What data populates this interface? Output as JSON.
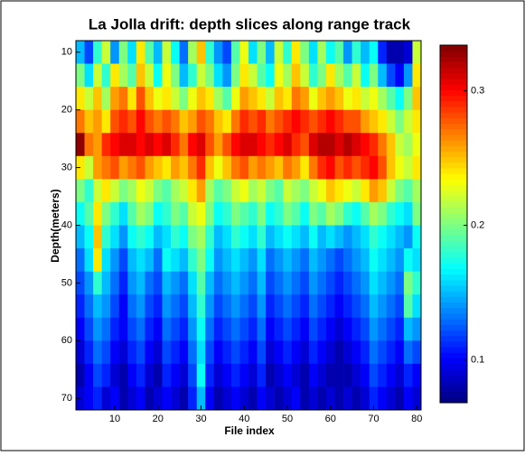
{
  "chart_data": {
    "type": "heatmap",
    "title": "La Jolla drift: depth slices along range track",
    "xlabel": "File index",
    "ylabel": "Depth(meters)",
    "colormap": "jet",
    "x": [
      2,
      4,
      6,
      8,
      10,
      12,
      14,
      16,
      18,
      20,
      22,
      24,
      26,
      28,
      30,
      32,
      34,
      36,
      38,
      40,
      42,
      44,
      46,
      48,
      50,
      52,
      54,
      56,
      58,
      60,
      62,
      64,
      66,
      68,
      70,
      72,
      74,
      76,
      78,
      80
    ],
    "y": [
      10,
      14,
      18,
      22,
      26,
      30,
      34,
      38,
      42,
      46,
      50,
      54,
      58,
      62,
      66,
      70
    ],
    "xlim": [
      1,
      81
    ],
    "ylim": [
      72,
      8
    ],
    "xticks": [
      10,
      20,
      30,
      40,
      50,
      60,
      70,
      80
    ],
    "yticks": [
      10,
      20,
      30,
      40,
      50,
      60,
      70
    ],
    "clim": [
      0.068,
      0.334
    ],
    "cticks": [
      0.1,
      0.2,
      0.3
    ],
    "z": [
      [
        0.15,
        0.12,
        0.18,
        0.22,
        0.14,
        0.2,
        0.16,
        0.24,
        0.19,
        0.15,
        0.22,
        0.17,
        0.13,
        0.21,
        0.25,
        0.18,
        0.14,
        0.12,
        0.19,
        0.23,
        0.16,
        0.2,
        0.15,
        0.22,
        0.18,
        0.24,
        0.2,
        0.16,
        0.21,
        0.17,
        0.19,
        0.14,
        0.18,
        0.15,
        0.17,
        0.11,
        0.08,
        0.08,
        0.09,
        0.22
      ],
      [
        0.2,
        0.16,
        0.22,
        0.18,
        0.24,
        0.21,
        0.19,
        0.25,
        0.22,
        0.17,
        0.23,
        0.2,
        0.15,
        0.18,
        0.22,
        0.2,
        0.16,
        0.14,
        0.2,
        0.24,
        0.22,
        0.19,
        0.17,
        0.23,
        0.21,
        0.25,
        0.22,
        0.18,
        0.2,
        0.24,
        0.21,
        0.19,
        0.22,
        0.17,
        0.2,
        0.15,
        0.12,
        0.1,
        0.14,
        0.24
      ],
      [
        0.24,
        0.22,
        0.25,
        0.21,
        0.26,
        0.27,
        0.24,
        0.28,
        0.25,
        0.23,
        0.24,
        0.22,
        0.2,
        0.23,
        0.25,
        0.24,
        0.21,
        0.19,
        0.23,
        0.26,
        0.25,
        0.24,
        0.22,
        0.25,
        0.24,
        0.27,
        0.26,
        0.23,
        0.25,
        0.26,
        0.25,
        0.23,
        0.24,
        0.22,
        0.23,
        0.21,
        0.19,
        0.17,
        0.2,
        0.25
      ],
      [
        0.27,
        0.25,
        0.26,
        0.24,
        0.28,
        0.29,
        0.28,
        0.3,
        0.28,
        0.27,
        0.28,
        0.27,
        0.25,
        0.26,
        0.28,
        0.27,
        0.25,
        0.24,
        0.27,
        0.29,
        0.28,
        0.29,
        0.27,
        0.28,
        0.29,
        0.3,
        0.29,
        0.28,
        0.29,
        0.3,
        0.29,
        0.28,
        0.28,
        0.26,
        0.25,
        0.24,
        0.22,
        0.2,
        0.22,
        0.24
      ],
      [
        0.33,
        0.27,
        0.26,
        0.29,
        0.3,
        0.31,
        0.31,
        0.3,
        0.31,
        0.3,
        0.31,
        0.29,
        0.27,
        0.3,
        0.31,
        0.28,
        0.26,
        0.28,
        0.3,
        0.31,
        0.31,
        0.3,
        0.29,
        0.3,
        0.31,
        0.29,
        0.28,
        0.31,
        0.32,
        0.32,
        0.31,
        0.32,
        0.31,
        0.3,
        0.29,
        0.27,
        0.25,
        0.22,
        0.21,
        0.23
      ],
      [
        0.24,
        0.22,
        0.26,
        0.27,
        0.28,
        0.26,
        0.27,
        0.28,
        0.26,
        0.25,
        0.24,
        0.26,
        0.25,
        0.27,
        0.29,
        0.25,
        0.23,
        0.25,
        0.27,
        0.28,
        0.26,
        0.27,
        0.26,
        0.25,
        0.27,
        0.26,
        0.24,
        0.27,
        0.29,
        0.3,
        0.28,
        0.29,
        0.28,
        0.29,
        0.3,
        0.28,
        0.25,
        0.23,
        0.22,
        0.24
      ],
      [
        0.2,
        0.18,
        0.22,
        0.24,
        0.22,
        0.2,
        0.21,
        0.23,
        0.22,
        0.2,
        0.19,
        0.21,
        0.22,
        0.24,
        0.26,
        0.21,
        0.19,
        0.2,
        0.22,
        0.23,
        0.21,
        0.22,
        0.2,
        0.19,
        0.22,
        0.21,
        0.2,
        0.22,
        0.23,
        0.25,
        0.24,
        0.23,
        0.22,
        0.24,
        0.26,
        0.25,
        0.22,
        0.2,
        0.19,
        0.21
      ],
      [
        0.17,
        0.19,
        0.24,
        0.2,
        0.18,
        0.16,
        0.19,
        0.21,
        0.2,
        0.17,
        0.18,
        0.2,
        0.19,
        0.22,
        0.23,
        0.2,
        0.17,
        0.18,
        0.2,
        0.19,
        0.18,
        0.2,
        0.17,
        0.18,
        0.2,
        0.19,
        0.17,
        0.2,
        0.19,
        0.21,
        0.2,
        0.18,
        0.17,
        0.19,
        0.21,
        0.2,
        0.18,
        0.17,
        0.16,
        0.2
      ],
      [
        0.15,
        0.17,
        0.25,
        0.18,
        0.16,
        0.14,
        0.17,
        0.18,
        0.17,
        0.15,
        0.16,
        0.18,
        0.17,
        0.2,
        0.21,
        0.18,
        0.15,
        0.16,
        0.18,
        0.17,
        0.16,
        0.18,
        0.15,
        0.16,
        0.17,
        0.16,
        0.15,
        0.17,
        0.15,
        0.16,
        0.15,
        0.14,
        0.15,
        0.16,
        0.18,
        0.17,
        0.16,
        0.15,
        0.14,
        0.17
      ],
      [
        0.13,
        0.16,
        0.24,
        0.16,
        0.14,
        0.12,
        0.15,
        0.16,
        0.15,
        0.13,
        0.17,
        0.16,
        0.15,
        0.18,
        0.2,
        0.17,
        0.14,
        0.15,
        0.16,
        0.15,
        0.14,
        0.16,
        0.13,
        0.14,
        0.15,
        0.14,
        0.13,
        0.15,
        0.14,
        0.13,
        0.12,
        0.13,
        0.14,
        0.15,
        0.17,
        0.16,
        0.15,
        0.14,
        0.17,
        0.16
      ],
      [
        0.12,
        0.14,
        0.18,
        0.15,
        0.13,
        0.11,
        0.14,
        0.15,
        0.13,
        0.12,
        0.15,
        0.14,
        0.13,
        0.16,
        0.19,
        0.15,
        0.13,
        0.14,
        0.15,
        0.14,
        0.13,
        0.15,
        0.12,
        0.13,
        0.14,
        0.13,
        0.12,
        0.14,
        0.13,
        0.12,
        0.11,
        0.12,
        0.13,
        0.14,
        0.16,
        0.15,
        0.14,
        0.13,
        0.2,
        0.18
      ],
      [
        0.11,
        0.13,
        0.15,
        0.14,
        0.12,
        0.1,
        0.13,
        0.14,
        0.12,
        0.11,
        0.14,
        0.13,
        0.12,
        0.15,
        0.18,
        0.14,
        0.12,
        0.13,
        0.14,
        0.13,
        0.12,
        0.14,
        0.11,
        0.12,
        0.13,
        0.12,
        0.11,
        0.13,
        0.12,
        0.11,
        0.1,
        0.11,
        0.12,
        0.13,
        0.15,
        0.14,
        0.13,
        0.12,
        0.19,
        0.16
      ],
      [
        0.1,
        0.12,
        0.14,
        0.13,
        0.11,
        0.1,
        0.12,
        0.13,
        0.11,
        0.1,
        0.13,
        0.12,
        0.11,
        0.14,
        0.17,
        0.13,
        0.11,
        0.12,
        0.13,
        0.12,
        0.11,
        0.13,
        0.1,
        0.11,
        0.12,
        0.11,
        0.1,
        0.12,
        0.11,
        0.1,
        0.09,
        0.1,
        0.11,
        0.12,
        0.14,
        0.13,
        0.12,
        0.11,
        0.15,
        0.14
      ],
      [
        0.09,
        0.11,
        0.13,
        0.12,
        0.1,
        0.09,
        0.11,
        0.12,
        0.1,
        0.09,
        0.12,
        0.11,
        0.1,
        0.13,
        0.16,
        0.12,
        0.1,
        0.11,
        0.12,
        0.11,
        0.1,
        0.12,
        0.09,
        0.1,
        0.11,
        0.1,
        0.09,
        0.11,
        0.1,
        0.09,
        0.08,
        0.09,
        0.1,
        0.11,
        0.13,
        0.12,
        0.11,
        0.1,
        0.13,
        0.12
      ],
      [
        0.08,
        0.1,
        0.12,
        0.11,
        0.09,
        0.08,
        0.1,
        0.11,
        0.09,
        0.08,
        0.11,
        0.1,
        0.09,
        0.12,
        0.17,
        0.11,
        0.09,
        0.1,
        0.11,
        0.1,
        0.09,
        0.11,
        0.08,
        0.09,
        0.1,
        0.09,
        0.08,
        0.1,
        0.09,
        0.08,
        0.08,
        0.08,
        0.09,
        0.1,
        0.12,
        0.11,
        0.1,
        0.09,
        0.11,
        0.1
      ],
      [
        0.09,
        0.1,
        0.11,
        0.09,
        0.1,
        0.08,
        0.09,
        0.1,
        0.08,
        0.09,
        0.1,
        0.09,
        0.08,
        0.11,
        0.15,
        0.1,
        0.08,
        0.09,
        0.1,
        0.09,
        0.08,
        0.1,
        0.09,
        0.08,
        0.09,
        0.1,
        0.08,
        0.09,
        0.08,
        0.09,
        0.08,
        0.09,
        0.08,
        0.09,
        0.11,
        0.1,
        0.09,
        0.08,
        0.1,
        0.09
      ]
    ]
  }
}
